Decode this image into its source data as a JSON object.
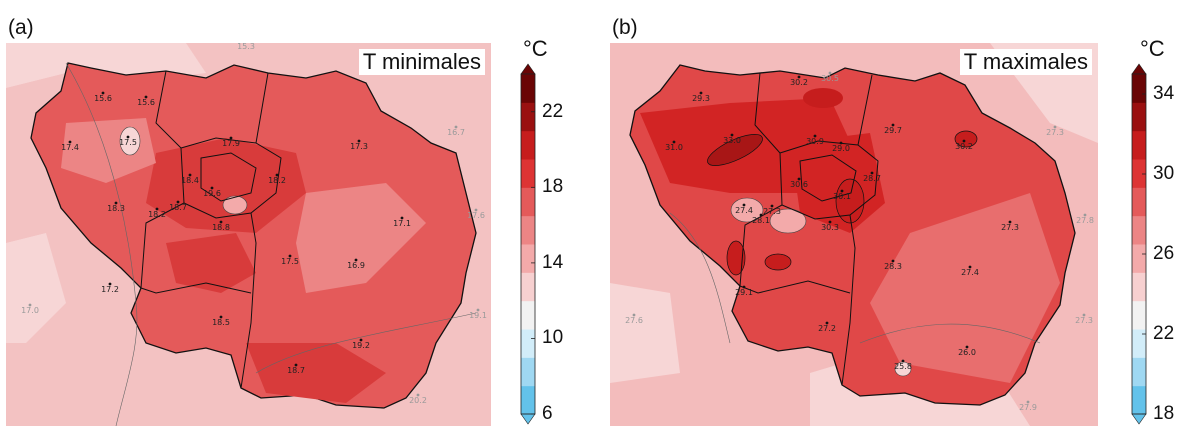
{
  "panels": [
    {
      "letter": "(a)",
      "title": "T minimales",
      "unit": "°C",
      "colorbar": {
        "ticks": [
          "6",
          "10",
          "14",
          "18",
          "22"
        ],
        "range": [
          6,
          24
        ],
        "colors": [
          "#63c2ea",
          "#9fd8f2",
          "#d2edf9",
          "#f2f2f2",
          "#f7d0d0",
          "#f3aaaa",
          "#ec8585",
          "#e45a5a",
          "#dd3434",
          "#c61d1d",
          "#9a1010",
          "#6a0505"
        ]
      },
      "stations": [
        {
          "label": "15.3",
          "inside": false
        },
        {
          "label": "15.6",
          "inside": true
        },
        {
          "label": "15.6",
          "inside": true
        },
        {
          "label": "16.7",
          "inside": false
        },
        {
          "label": "17.4",
          "inside": true
        },
        {
          "label": "17.5",
          "inside": true
        },
        {
          "label": "17.9",
          "inside": true
        },
        {
          "label": "17.3",
          "inside": true
        },
        {
          "label": "18.4",
          "inside": true
        },
        {
          "label": "18.2",
          "inside": true
        },
        {
          "label": "19.6",
          "inside": true
        },
        {
          "label": "18.3",
          "inside": true
        },
        {
          "label": "18.2",
          "inside": true
        },
        {
          "label": "18.7",
          "inside": true
        },
        {
          "label": "18.8",
          "inside": true
        },
        {
          "label": "17.1",
          "inside": true
        },
        {
          "label": "17.6",
          "inside": false
        },
        {
          "label": "17.5",
          "inside": true
        },
        {
          "label": "16.9",
          "inside": true
        },
        {
          "label": "17.2",
          "inside": true
        },
        {
          "label": "17.0",
          "inside": false
        },
        {
          "label": "18.5",
          "inside": true
        },
        {
          "label": "19.1",
          "inside": false
        },
        {
          "label": "19.2",
          "inside": true
        },
        {
          "label": "18.7",
          "inside": true
        },
        {
          "label": "20.2",
          "inside": false
        }
      ]
    },
    {
      "letter": "(b)",
      "title": "T maximales",
      "unit": "°C",
      "colorbar": {
        "ticks": [
          "18",
          "22",
          "26",
          "30",
          "34"
        ],
        "range": [
          18,
          35
        ],
        "colors": [
          "#63c2ea",
          "#9fd8f2",
          "#d2edf9",
          "#f2f2f2",
          "#f7d0d0",
          "#f3aaaa",
          "#ec8585",
          "#e45a5a",
          "#dd3434",
          "#c61d1d",
          "#9a1010",
          "#6a0505"
        ]
      },
      "stations": [
        {
          "label": "30.5",
          "inside": false
        },
        {
          "label": "29.3",
          "inside": true
        },
        {
          "label": "30.2",
          "inside": true
        },
        {
          "label": "27.3",
          "inside": false
        },
        {
          "label": "31.0",
          "inside": true
        },
        {
          "label": "33.0",
          "inside": true
        },
        {
          "label": "30.9",
          "inside": true
        },
        {
          "label": "29.0",
          "inside": true
        },
        {
          "label": "29.7",
          "inside": true
        },
        {
          "label": "30.2",
          "inside": true
        },
        {
          "label": "30.6",
          "inside": true
        },
        {
          "label": "28.7",
          "inside": true
        },
        {
          "label": "30.1",
          "inside": true
        },
        {
          "label": "27.4",
          "inside": true
        },
        {
          "label": "27.3",
          "inside": true
        },
        {
          "label": "28.1",
          "inside": true
        },
        {
          "label": "30.3",
          "inside": true
        },
        {
          "label": "27.3",
          "inside": true
        },
        {
          "label": "27.8",
          "inside": false
        },
        {
          "label": "28.3",
          "inside": true
        },
        {
          "label": "27.4",
          "inside": true
        },
        {
          "label": "29.1",
          "inside": true
        },
        {
          "label": "27.6",
          "inside": false
        },
        {
          "label": "27.2",
          "inside": true
        },
        {
          "label": "27.3",
          "inside": false
        },
        {
          "label": "26.0",
          "inside": true
        },
        {
          "label": "25.8",
          "inside": true
        },
        {
          "label": "27.9",
          "inside": false
        }
      ]
    }
  ]
}
